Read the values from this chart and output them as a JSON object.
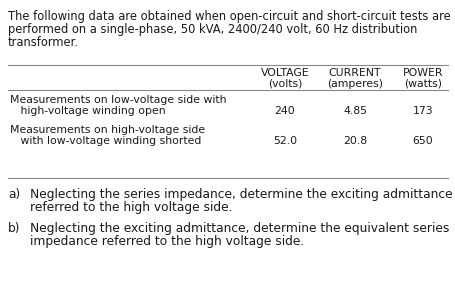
{
  "intro_line1": "The following data are obtained when open-circuit and short-circuit tests are",
  "intro_line2": "performed on a single-phase, 50 kVA, 2400/240 volt, 60 Hz distribution",
  "intro_line3": "transformer.",
  "col_header1_line1": "VOLTAGE",
  "col_header1_line2": "(volts)",
  "col_header2_line1": "CURRENT",
  "col_header2_line2": "(amperes)",
  "col_header3_line1": "POWER",
  "col_header3_line2": "(watts)",
  "row1_label_line1": "Measurements on low-voltage side with",
  "row1_label_line2": "   high-voltage winding open",
  "row1_v": "240",
  "row1_c": "4.85",
  "row1_p": "173",
  "row2_label_line1": "Measurements on high-voltage side",
  "row2_label_line2": "   with low-voltage winding shorted",
  "row2_v": "52.0",
  "row2_c": "20.8",
  "row2_p": "650",
  "qa_label": "a)",
  "qa_line1": "Neglecting the series impedance, determine the exciting admittance",
  "qa_line2": "referred to the high voltage side.",
  "qb_label": "b)",
  "qb_line1": "Neglecting the exciting admittance, determine the equivalent series",
  "qb_line2": "impedance referred to the high voltage side.",
  "bg_color": "#ffffff",
  "text_color": "#1a1a1a",
  "line_color": "#888888",
  "fs_intro": 8.3,
  "fs_table": 7.8,
  "fs_question": 8.8
}
